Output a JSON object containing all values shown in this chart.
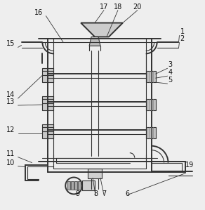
{
  "background_color": "#eeeeee",
  "line_color": "#333333",
  "label_color": "#111111",
  "figsize": [
    2.92,
    2.99
  ],
  "dpi": 100,
  "lw_outer": 1.4,
  "lw_inner": 0.8
}
